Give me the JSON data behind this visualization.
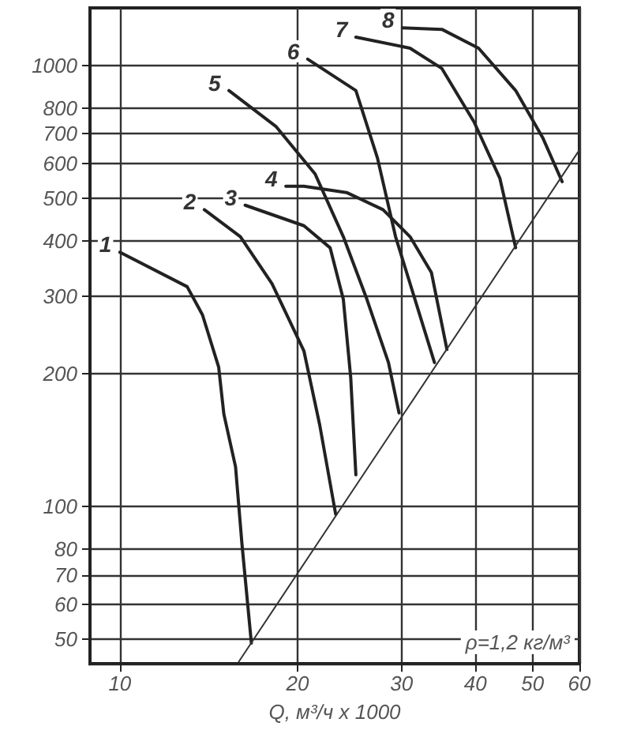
{
  "chart_data": {
    "type": "line",
    "xlabel": "Q, м³/ч x 1000",
    "annotations": [
      "ρ=1,2 кг/м³"
    ],
    "log": "xy",
    "grid": true,
    "legend": false,
    "marker": "none",
    "line_style": "solid",
    "xlim": [
      8.9,
      60
    ],
    "xticks": [
      10,
      20,
      30,
      40,
      50,
      60
    ],
    "ylim": [
      44,
      1350
    ],
    "yticks": [
      50,
      60,
      70,
      80,
      100,
      200,
      300,
      400,
      500,
      600,
      700,
      800,
      1000
    ],
    "series": [
      {
        "name": "1",
        "color": "#222222",
        "x": [
          10,
          13,
          13.8,
          14.7,
          15,
          15.7,
          16.1,
          16.7
        ],
        "values": [
          377,
          315,
          272,
          207,
          162,
          123,
          82,
          49
        ]
      },
      {
        "name": "2",
        "color": "#222222",
        "x": [
          13.9,
          16,
          18.1,
          20.5,
          21.8,
          23.2
        ],
        "values": [
          471,
          409,
          320,
          225,
          153,
          96
        ]
      },
      {
        "name": "3",
        "color": "#222222",
        "x": [
          16.3,
          20.5,
          22.7,
          23.9,
          24.6,
          25.1
        ],
        "values": [
          482,
          433,
          386,
          295,
          196,
          118
        ]
      },
      {
        "name": "4",
        "color": "#222222",
        "x": [
          19.1,
          20.5,
          24.2,
          27.9,
          31,
          33.7,
          35.8
        ],
        "values": [
          532,
          532,
          515,
          471,
          409,
          339,
          227
        ]
      },
      {
        "name": "5",
        "color": "#222222",
        "x": [
          15.3,
          18.4,
          21.4,
          23.9,
          26.2,
          28.5,
          29.7
        ],
        "values": [
          877,
          726,
          568,
          409,
          295,
          212,
          163
        ]
      },
      {
        "name": "6",
        "color": "#222222",
        "x": [
          20.8,
          25.1,
          27.3,
          29.3,
          31.6,
          34.1
        ],
        "values": [
          1033,
          877,
          617,
          409,
          295,
          212
        ]
      },
      {
        "name": "7",
        "color": "#222222",
        "x": [
          25.1,
          31,
          35.1,
          39.8,
          44,
          46.8
        ],
        "values": [
          1159,
          1094,
          984,
          744,
          555,
          386
        ]
      },
      {
        "name": "8",
        "color": "#222222",
        "x": [
          30.1,
          35.1,
          40.5,
          46.8,
          52,
          56.1
        ],
        "values": [
          1217,
          1207,
          1094,
          877,
          686,
          545
        ]
      },
      {
        "color": "#333333",
        "x": [
          15.9,
          60
        ],
        "values": [
          44.5,
          643
        ]
      }
    ]
  }
}
